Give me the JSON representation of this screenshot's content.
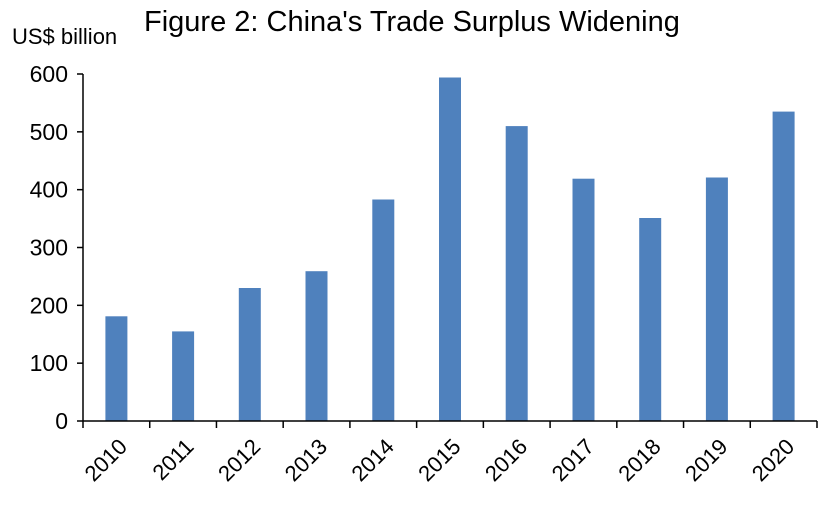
{
  "chart_data": {
    "type": "bar",
    "title": "Figure 2: China's Trade Surplus Widening",
    "ylabel": "US$ billion",
    "xlabel": "",
    "categories": [
      "2010",
      "2011",
      "2012",
      "2013",
      "2014",
      "2015",
      "2016",
      "2017",
      "2018",
      "2019",
      "2020"
    ],
    "values": [
      181,
      155,
      230,
      259,
      383,
      594,
      510,
      419,
      351,
      421,
      535
    ],
    "ylim": [
      0,
      600
    ],
    "yticks": [
      0,
      100,
      200,
      300,
      400,
      500,
      600
    ],
    "grid": false,
    "legend": "none",
    "bar_color": "#4f81bd"
  }
}
